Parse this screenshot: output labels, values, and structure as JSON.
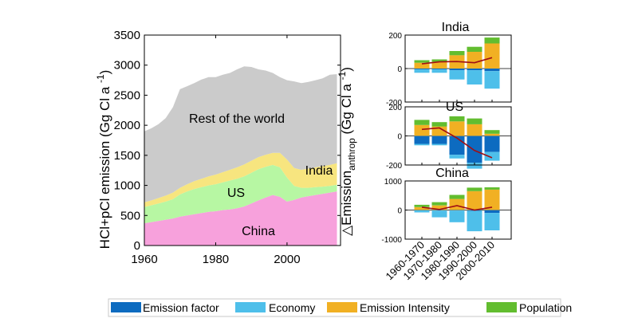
{
  "chart_data": [
    {
      "type": "area",
      "stacked": true,
      "ylabel": "HCl+pCl emission  (Gg Cl a ",
      "ylabel_sup": "-1",
      "ylabel_close": ")",
      "xlim": [
        1960,
        2015
      ],
      "ylim": [
        0,
        3500
      ],
      "xticks": [
        1960,
        1980,
        2000
      ],
      "xtick_labels": [
        "1960",
        "1980",
        "2000"
      ],
      "yticks": [
        0,
        500,
        1000,
        1500,
        2000,
        2500,
        3000,
        3500
      ],
      "ytick_labels": [
        "0",
        "500",
        "1000",
        "1500",
        "2000",
        "2500",
        "3000",
        "3500"
      ],
      "x": [
        1960,
        1962,
        1964,
        1966,
        1968,
        1970,
        1972,
        1974,
        1976,
        1978,
        1980,
        1982,
        1984,
        1986,
        1988,
        1990,
        1992,
        1994,
        1996,
        1998,
        2000,
        2002,
        2004,
        2006,
        2008,
        2010,
        2012,
        2014
      ],
      "series": [
        {
          "name": "China",
          "color": "#f7a1dc",
          "values": [
            370,
            390,
            410,
            430,
            450,
            480,
            500,
            520,
            540,
            560,
            570,
            590,
            600,
            620,
            650,
            700,
            750,
            800,
            840,
            810,
            730,
            760,
            800,
            820,
            840,
            860,
            880,
            900
          ]
        },
        {
          "name": "US",
          "color": "#b7f7a3",
          "values": [
            270,
            280,
            290,
            300,
            320,
            370,
            400,
            420,
            430,
            440,
            450,
            460,
            480,
            490,
            500,
            510,
            520,
            510,
            500,
            490,
            400,
            230,
            160,
            140,
            130,
            120,
            110,
            110
          ]
        },
        {
          "name": "India",
          "color": "#f7e57f",
          "values": [
            80,
            80,
            90,
            100,
            110,
            110,
            120,
            130,
            140,
            150,
            160,
            170,
            180,
            190,
            200,
            200,
            200,
            200,
            200,
            240,
            300,
            300,
            300,
            320,
            330,
            340,
            350,
            360
          ]
        },
        {
          "name": "Rest of the world",
          "color": "#cbcbcb",
          "values": [
            1180,
            1200,
            1230,
            1290,
            1420,
            1640,
            1630,
            1630,
            1650,
            1650,
            1620,
            1620,
            1610,
            1630,
            1630,
            1560,
            1460,
            1400,
            1330,
            1260,
            1320,
            1440,
            1440,
            1440,
            1450,
            1460,
            1500,
            1480
          ]
        }
      ],
      "annotations": [
        "Rest of the world",
        "India",
        "US",
        "China"
      ]
    },
    {
      "type": "bar",
      "stacked": true,
      "title": "India",
      "categories": [
        "1960-1970",
        "1970-1980",
        "1980-1990",
        "1990-2000",
        "2000-2010"
      ],
      "ylim": [
        -200,
        200
      ],
      "yticks": [
        -200,
        0,
        200
      ],
      "ytick_labels": [
        "-200",
        "0",
        "200"
      ],
      "series": [
        {
          "name": "Emission factor",
          "color": "#0d6bc0",
          "values": [
            -5,
            -5,
            -10,
            -10,
            -15
          ]
        },
        {
          "name": "Economy",
          "color": "#4ebfea",
          "values": [
            -20,
            -20,
            -55,
            -85,
            -105
          ]
        },
        {
          "name": "Emission Intensity",
          "color": "#f1b023",
          "values": [
            35,
            40,
            80,
            100,
            150
          ]
        },
        {
          "name": "Population",
          "color": "#62bd2f",
          "values": [
            15,
            15,
            25,
            30,
            35
          ]
        }
      ],
      "line": {
        "name": "Total",
        "color": "#a00f14",
        "values": [
          28,
          40,
          42,
          35,
          65
        ]
      }
    },
    {
      "type": "bar",
      "stacked": true,
      "title": "US",
      "categories": [
        "1960-1970",
        "1970-1980",
        "1980-1990",
        "1990-2000",
        "2000-2010"
      ],
      "ylim": [
        -200,
        200
      ],
      "yticks": [
        -200,
        0,
        200
      ],
      "ytick_labels": [
        "-200",
        "0",
        "200"
      ],
      "series": [
        {
          "name": "Emission factor",
          "color": "#0d6bc0",
          "values": [
            -55,
            -55,
            -130,
            -185,
            -110
          ]
        },
        {
          "name": "Economy",
          "color": "#4ebfea",
          "values": [
            -10,
            -10,
            -25,
            -40,
            -60
          ]
        },
        {
          "name": "Emission Intensity",
          "color": "#f1b023",
          "values": [
            75,
            65,
            100,
            80,
            15
          ]
        },
        {
          "name": "Population",
          "color": "#62bd2f",
          "values": [
            35,
            30,
            35,
            40,
            25
          ]
        }
      ],
      "line": {
        "name": "Total",
        "color": "#a00f14",
        "values": [
          45,
          55,
          -15,
          -100,
          -150
        ]
      }
    },
    {
      "type": "bar",
      "stacked": true,
      "title": "China",
      "categories": [
        "1960-1970",
        "1970-1980",
        "1980-1990",
        "1990-2000",
        "2000-2010"
      ],
      "ylim": [
        -1000,
        1000
      ],
      "yticks": [
        -1000,
        0,
        1000
      ],
      "ytick_labels": [
        "-1000",
        "0",
        "1000"
      ],
      "series": [
        {
          "name": "Emission factor",
          "color": "#0d6bc0",
          "values": [
            -10,
            -20,
            -20,
            -30,
            -100
          ]
        },
        {
          "name": "Economy",
          "color": "#4ebfea",
          "values": [
            -70,
            -230,
            -400,
            -700,
            -600
          ]
        },
        {
          "name": "Emission Intensity",
          "color": "#f1b023",
          "values": [
            100,
            160,
            380,
            650,
            700
          ]
        },
        {
          "name": "Population",
          "color": "#62bd2f",
          "values": [
            80,
            110,
            140,
            120,
            80
          ]
        }
      ],
      "line": {
        "name": "Total",
        "color": "#a00f14",
        "values": [
          100,
          20,
          150,
          0,
          100
        ]
      }
    }
  ],
  "right_ylabel": {
    "prefix": "△Emission",
    "sub": "anthrop",
    "units": "  (Gg Cl a ",
    "sup": "-1",
    "close": ")"
  },
  "legend": {
    "placement": "bottom",
    "items": [
      {
        "label": "Emission factor",
        "color": "#0d6bc0"
      },
      {
        "label": "Economy",
        "color": "#4ebfea"
      },
      {
        "label": "Emission Intensity",
        "color": "#f1b023"
      },
      {
        "label": "Population",
        "color": "#62bd2f"
      }
    ]
  }
}
